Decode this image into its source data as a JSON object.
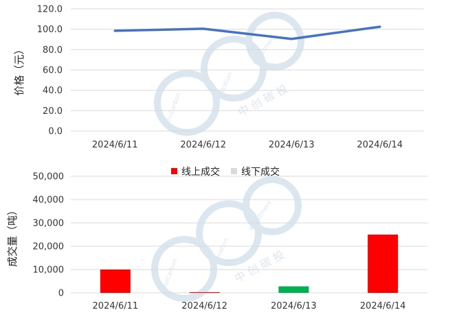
{
  "chart_data": [
    {
      "type": "line",
      "categories": [
        "2024/6/11",
        "2024/6/12",
        "2024/6/13",
        "2024/6/14"
      ],
      "series": [
        {
          "values": [
            98.5,
            100.5,
            90.5,
            102.5
          ],
          "color": "#4472c4"
        }
      ],
      "ylabel": "价格（元）",
      "ylim": [
        0,
        120
      ],
      "yticks": [
        "0.0",
        "20.0",
        "40.0",
        "60.0",
        "80.0",
        "100.0",
        "120.0"
      ],
      "grid": true
    },
    {
      "type": "bar",
      "categories": [
        "2024/6/11",
        "2024/6/12",
        "2024/6/13",
        "2024/6/14"
      ],
      "series": [
        {
          "name": "线上成交",
          "values": [
            10000,
            300,
            0,
            25000
          ],
          "color": "#ff0000"
        },
        {
          "name": "线下成交",
          "values": [
            0,
            0,
            2800,
            0
          ],
          "color": "#d9d9d9"
        }
      ],
      "bar_colors": [
        "#ff0000",
        "#ff0000",
        "#00b050",
        "#ff0000"
      ],
      "ylabel": "成交量（吨）",
      "ylim": [
        0,
        50000
      ],
      "yticks": [
        "0",
        "10,000",
        "20,000",
        "30,000",
        "40,000",
        "50,000"
      ],
      "legend_position": "top",
      "grid": true
    }
  ],
  "watermark": {
    "text_cn": "中 创 碳 投",
    "text_en_1": "SinoCarbon",
    "text_en_2": "Innovation",
    "text_en_3": "Investment",
    "color": "#dce6ef"
  }
}
